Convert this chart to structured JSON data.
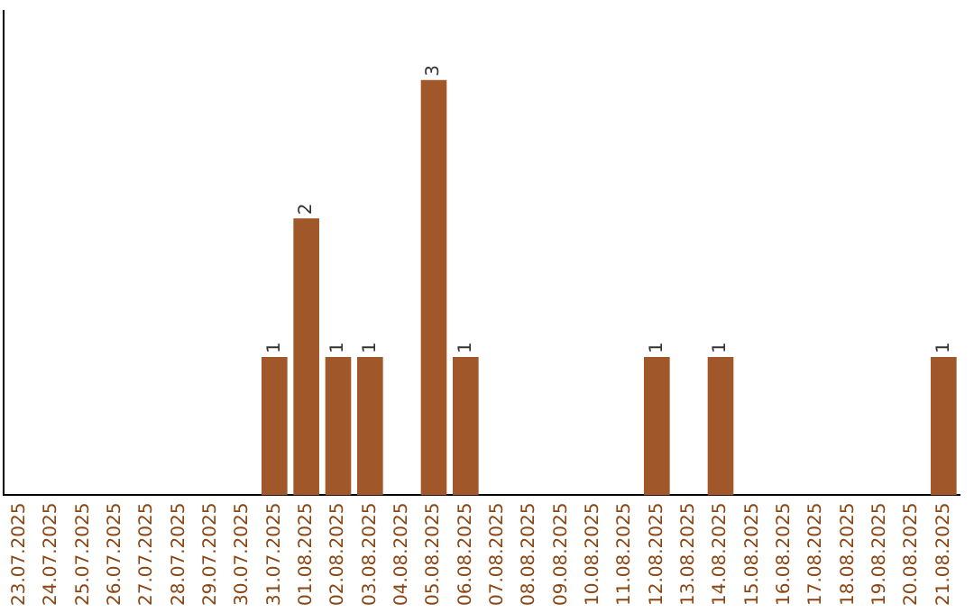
{
  "chart_data": {
    "type": "bar",
    "categories": [
      "23.07.2025",
      "24.07.2025",
      "25.07.2025",
      "26.07.2025",
      "27.07.2025",
      "28.07.2025",
      "29.07.2025",
      "30.07.2025",
      "31.07.2025",
      "01.08.2025",
      "02.08.2025",
      "03.08.2025",
      "04.08.2025",
      "05.08.2025",
      "06.08.2025",
      "07.08.2025",
      "08.08.2025",
      "09.08.2025",
      "10.08.2025",
      "11.08.2025",
      "12.08.2025",
      "13.08.2025",
      "14.08.2025",
      "15.08.2025",
      "16.08.2025",
      "17.08.2025",
      "18.08.2025",
      "19.08.2025",
      "20.08.2025",
      "21.08.2025"
    ],
    "values": [
      0,
      0,
      0,
      0,
      0,
      0,
      0,
      0,
      1,
      2,
      1,
      1,
      0,
      3,
      1,
      0,
      0,
      0,
      0,
      0,
      1,
      0,
      1,
      0,
      0,
      0,
      0,
      0,
      0,
      1
    ],
    "value_labels": [
      null,
      null,
      null,
      null,
      null,
      null,
      null,
      null,
      "1",
      "2",
      "1",
      "1",
      null,
      "3",
      "1",
      null,
      null,
      null,
      null,
      null,
      "1",
      null,
      "1",
      null,
      null,
      null,
      null,
      null,
      null,
      "1"
    ],
    "color": "#a0572a",
    "grid": false,
    "legend": false,
    "tick_labels": "x"
  }
}
